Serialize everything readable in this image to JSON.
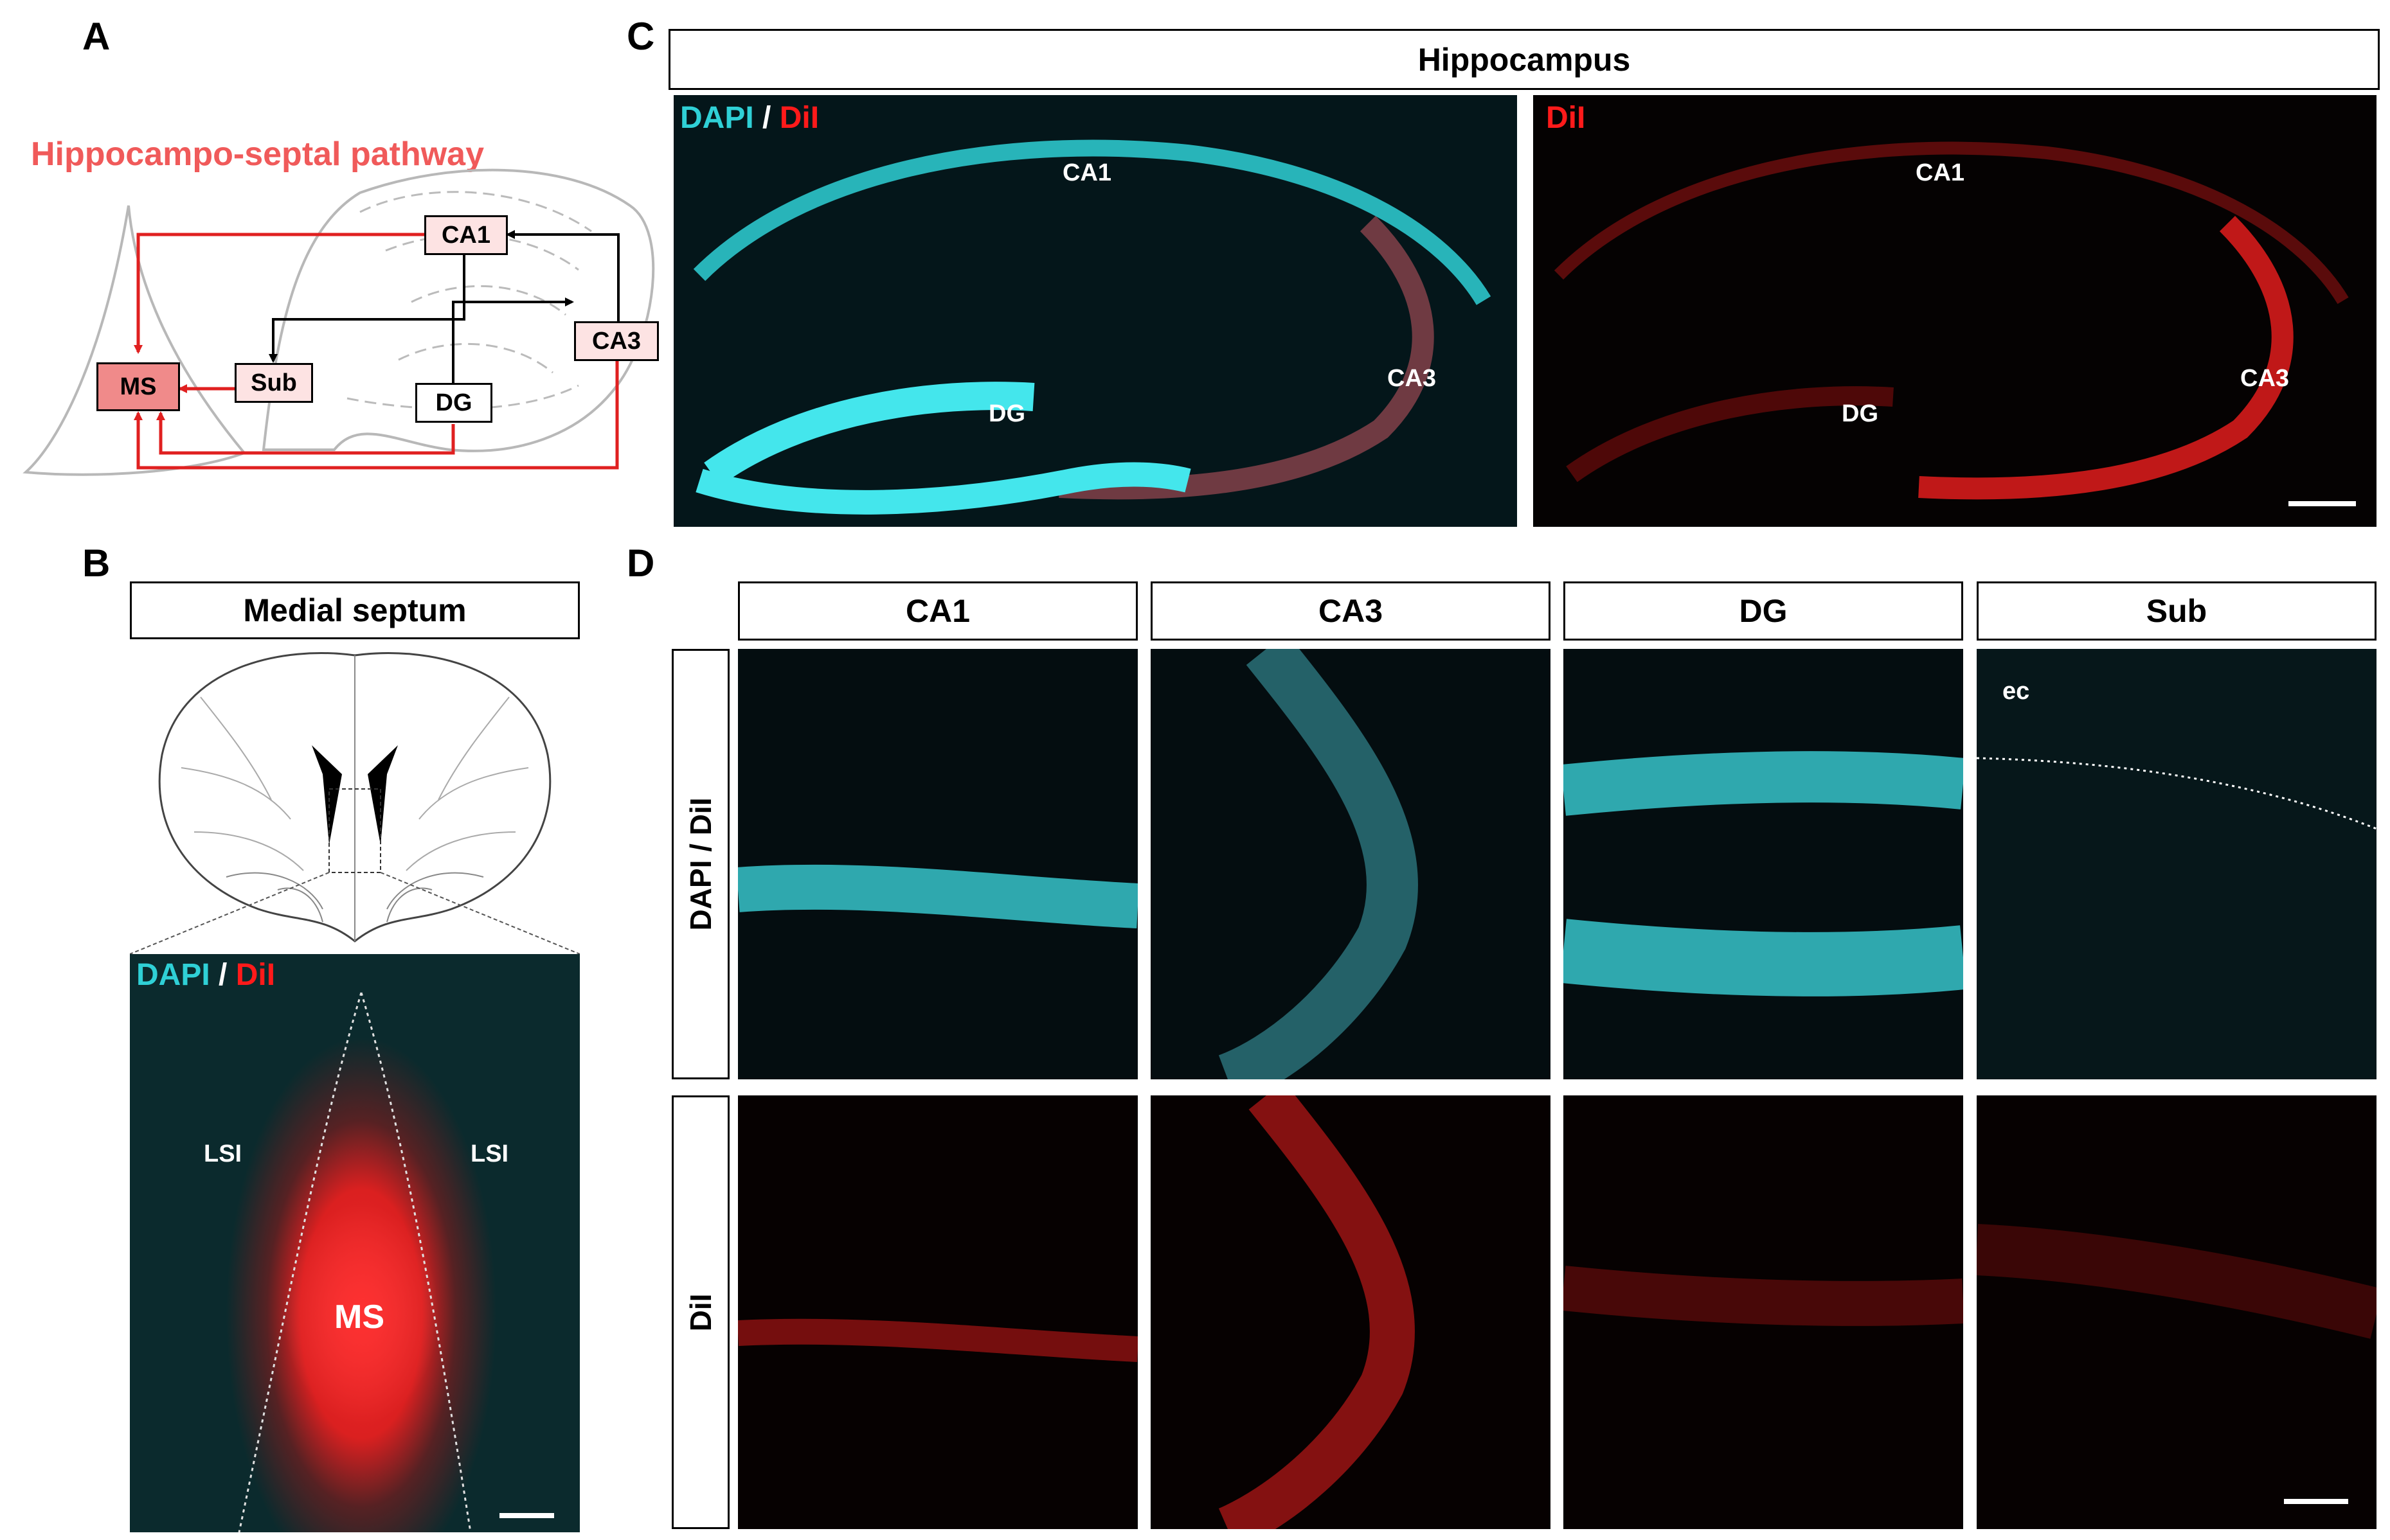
{
  "panels": {
    "a": {
      "letter": "A",
      "title": "Hippocampo-septal pathway",
      "nodes": {
        "ca1": "CA1",
        "ca3": "CA3",
        "sub": "Sub",
        "dg": "DG",
        "ms": "MS"
      },
      "title_color": "#f05a5a",
      "arrow_color": "#e02020"
    },
    "b": {
      "letter": "B",
      "header": "Medial septum",
      "channel_dapi": "DAPI",
      "channel_sep": "/",
      "channel_dii": "DiI",
      "label_lsi_left": "LSI",
      "label_lsi_right": "LSI",
      "label_ms": "MS"
    },
    "c": {
      "letter": "C",
      "header": "Hippocampus",
      "left_channel_dapi": "DAPI",
      "left_channel_sep": "/",
      "left_channel_dii": "DiI",
      "right_channel_dii": "DiI",
      "left_labels": {
        "ca1": "CA1",
        "ca3": "CA3",
        "dg": "DG"
      },
      "right_labels": {
        "ca1": "CA1",
        "ca3": "CA3",
        "dg": "DG"
      }
    },
    "d": {
      "letter": "D",
      "columns": [
        "CA1",
        "CA3",
        "DG",
        "Sub"
      ],
      "rows": [
        "DAPI / DiI",
        "DiI"
      ],
      "ec_label": "ec"
    }
  },
  "colors": {
    "dapi": "#2fd0d6",
    "dii": "#ff1a1a"
  }
}
